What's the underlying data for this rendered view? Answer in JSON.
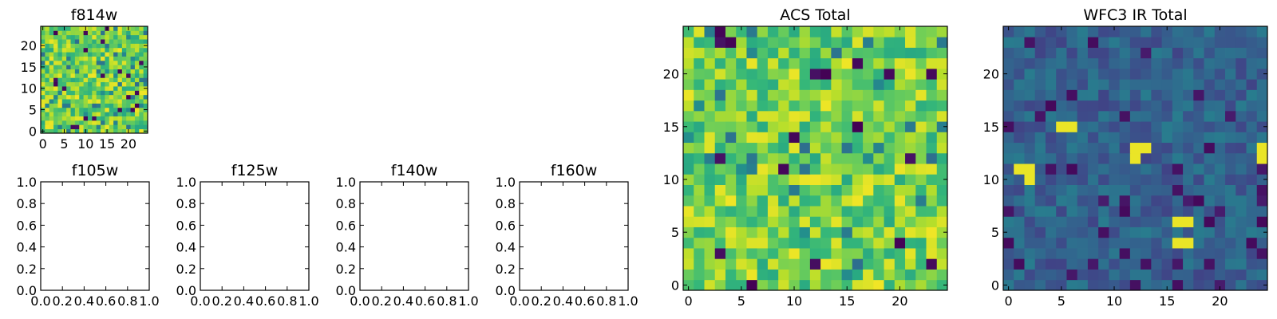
{
  "figure": {
    "colormap": "viridis",
    "colormap_stops": [
      "#440154",
      "#482878",
      "#3e4a89",
      "#31688e",
      "#26828e",
      "#1f9e89",
      "#35b779",
      "#6ece58",
      "#b5de2b",
      "#fde725"
    ]
  },
  "chart_data": [
    {
      "id": "f814w",
      "type": "heatmap",
      "title": "f814w",
      "xlabel": "",
      "ylabel": "",
      "grid_size": [
        25,
        25
      ],
      "xlim": [
        -0.5,
        24.5
      ],
      "ylim": [
        -0.5,
        24.5
      ],
      "xticks": [
        0,
        5,
        10,
        15,
        20
      ],
      "yticks": [
        0,
        5,
        10,
        15,
        20
      ],
      "value_range": [
        0,
        1
      ],
      "value_distribution": "mostly 0.6-0.95 (green/yellow) with a few low dark-purple cells",
      "grid": false
    },
    {
      "id": "f105w",
      "type": "scatter",
      "title": "f105w",
      "xlim": [
        0.0,
        1.0
      ],
      "ylim": [
        0.0,
        1.0
      ],
      "xticks": [
        "0.0",
        "0.2",
        "0.4",
        "0.6",
        "0.8",
        "1.0"
      ],
      "yticks": [
        "0.0",
        "0.2",
        "0.4",
        "0.6",
        "0.8",
        "1.0"
      ],
      "series": [],
      "grid": false
    },
    {
      "id": "f125w",
      "type": "scatter",
      "title": "f125w",
      "xlim": [
        0.0,
        1.0
      ],
      "ylim": [
        0.0,
        1.0
      ],
      "xticks": [
        "0.0",
        "0.2",
        "0.4",
        "0.6",
        "0.8",
        "1.0"
      ],
      "yticks": [
        "0.0",
        "0.2",
        "0.4",
        "0.6",
        "0.8",
        "1.0"
      ],
      "series": [],
      "grid": false
    },
    {
      "id": "f140w",
      "type": "scatter",
      "title": "f140w",
      "xlim": [
        0.0,
        1.0
      ],
      "ylim": [
        0.0,
        1.0
      ],
      "xticks": [
        "0.0",
        "0.2",
        "0.4",
        "0.6",
        "0.8",
        "1.0"
      ],
      "yticks": [
        "0.0",
        "0.2",
        "0.4",
        "0.6",
        "0.8",
        "1.0"
      ],
      "series": [],
      "grid": false
    },
    {
      "id": "f160w",
      "type": "scatter",
      "title": "f160w",
      "xlim": [
        0.0,
        1.0
      ],
      "ylim": [
        0.0,
        1.0
      ],
      "xticks": [
        "0.0",
        "0.2",
        "0.4",
        "0.6",
        "0.8",
        "1.0"
      ],
      "yticks": [
        "0.0",
        "0.2",
        "0.4",
        "0.6",
        "0.8",
        "1.0"
      ],
      "series": [],
      "grid": false
    },
    {
      "id": "acs-total",
      "type": "heatmap",
      "title": "ACS Total",
      "grid_size": [
        25,
        25
      ],
      "xlim": [
        -0.5,
        24.5
      ],
      "ylim": [
        -0.5,
        24.5
      ],
      "xticks": [
        0,
        5,
        10,
        15,
        20
      ],
      "yticks": [
        0,
        5,
        10,
        15,
        20
      ],
      "value_range": [
        0,
        1
      ],
      "value_distribution": "mostly 0.6-0.95 (green/yellow) with a few low dark-purple cells",
      "grid": false
    },
    {
      "id": "wfc3-ir-total",
      "type": "heatmap",
      "title": "WFC3 IR Total",
      "grid_size": [
        25,
        25
      ],
      "xlim": [
        -0.5,
        24.5
      ],
      "ylim": [
        -0.5,
        24.5
      ],
      "xticks": [
        0,
        5,
        10,
        15,
        20
      ],
      "yticks": [
        0,
        5,
        10,
        15,
        20
      ],
      "value_range": [
        0,
        1
      ],
      "value_distribution": "mostly 0.2-0.4 (dark blue) with a few bright yellow outlier cells",
      "bright_cells": [
        [
          2,
          11
        ],
        [
          2,
          10
        ],
        [
          1,
          11
        ],
        [
          12,
          13
        ],
        [
          13,
          13
        ],
        [
          12,
          12
        ],
        [
          24,
          13
        ],
        [
          24,
          12
        ],
        [
          17,
          6
        ],
        [
          16,
          6
        ],
        [
          16,
          4
        ],
        [
          17,
          4
        ],
        [
          5,
          15
        ],
        [
          6,
          15
        ]
      ],
      "grid": false
    }
  ]
}
